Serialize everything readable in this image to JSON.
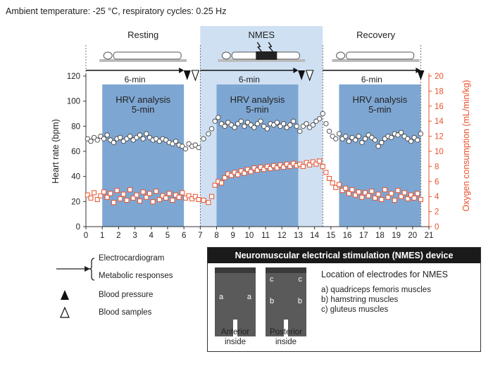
{
  "header": "Ambient temperature: -25 °C, respiratory cycles: 0.25 Hz",
  "colors": {
    "hr": "#444444",
    "vo2": "#e8502a",
    "hrv_band": "#7ea6d2",
    "nmes_band": "#cfe0f3",
    "axis_right": "#e8502a"
  },
  "chart_data": {
    "type": "scatter",
    "phases": [
      {
        "label": "Resting",
        "start": 0,
        "end": 7
      },
      {
        "label": "NMES",
        "start": 7,
        "end": 14.5
      },
      {
        "label": "Recovery",
        "start": 14.5,
        "end": 21
      }
    ],
    "hrv_windows": [
      {
        "label_line1": "HRV analysis",
        "label_line2": "5-min",
        "start": 1,
        "end": 6
      },
      {
        "label_line1": "HRV analysis",
        "label_line2": "5-min",
        "start": 8,
        "end": 13
      },
      {
        "label_line1": "HRV analysis",
        "label_line2": "5-min",
        "start": 15.5,
        "end": 20.5
      }
    ],
    "arrows": [
      {
        "label": "6-min",
        "start": 0,
        "end": 6
      },
      {
        "label": "6-min",
        "start": 7,
        "end": 13
      },
      {
        "label": "6-min",
        "start": 14.5,
        "end": 20.5
      }
    ],
    "blood_pressure_times": [
      6.2,
      13.2,
      20.5
    ],
    "blood_sample_times": [
      6.7,
      13.7
    ],
    "x_ticks": [
      0,
      1,
      2,
      3,
      4,
      5,
      6,
      7,
      8,
      9,
      10,
      11,
      12,
      13,
      14,
      15,
      16,
      17,
      18,
      19,
      20,
      21
    ],
    "xlim": [
      0,
      21
    ],
    "ylabel_left": "Heart rate (bpm)",
    "ylim_left": [
      0,
      120
    ],
    "yticks_left": [
      0,
      20,
      40,
      60,
      80,
      100,
      120
    ],
    "ylabel_right": "Oxygen consumption (mL/min/kg)",
    "ylim_right": [
      0,
      20
    ],
    "yticks_right": [
      0,
      2,
      4,
      6,
      8,
      10,
      12,
      14,
      16,
      18,
      20
    ],
    "series": [
      {
        "marker": "circle",
        "axis": "left",
        "points": [
          [
            0.1,
            70
          ],
          [
            0.3,
            68
          ],
          [
            0.5,
            71
          ],
          [
            0.7,
            69
          ],
          [
            0.9,
            72
          ],
          [
            1.1,
            70
          ],
          [
            1.3,
            73
          ],
          [
            1.5,
            69
          ],
          [
            1.7,
            67
          ],
          [
            1.9,
            70
          ],
          [
            2.1,
            71
          ],
          [
            2.3,
            68
          ],
          [
            2.5,
            70
          ],
          [
            2.7,
            72
          ],
          [
            2.9,
            69
          ],
          [
            3.1,
            71
          ],
          [
            3.3,
            73
          ],
          [
            3.5,
            70
          ],
          [
            3.7,
            74
          ],
          [
            3.9,
            71
          ],
          [
            4.1,
            69
          ],
          [
            4.3,
            70
          ],
          [
            4.5,
            68
          ],
          [
            4.7,
            70
          ],
          [
            4.9,
            69
          ],
          [
            5.1,
            67
          ],
          [
            5.3,
            66
          ],
          [
            5.5,
            68
          ],
          [
            5.7,
            65
          ],
          [
            5.9,
            64
          ],
          [
            6.1,
            62
          ],
          [
            6.3,
            66
          ],
          [
            6.5,
            64
          ],
          [
            6.7,
            65
          ],
          [
            6.9,
            63
          ],
          [
            7.2,
            70
          ],
          [
            7.5,
            74
          ],
          [
            7.7,
            78
          ],
          [
            7.9,
            84
          ],
          [
            8.1,
            87
          ],
          [
            8.3,
            82
          ],
          [
            8.5,
            80
          ],
          [
            8.7,
            83
          ],
          [
            8.9,
            81
          ],
          [
            9.1,
            79
          ],
          [
            9.3,
            82
          ],
          [
            9.5,
            84
          ],
          [
            9.7,
            80
          ],
          [
            9.9,
            83
          ],
          [
            10.1,
            81
          ],
          [
            10.3,
            79
          ],
          [
            10.5,
            82
          ],
          [
            10.7,
            84
          ],
          [
            10.9,
            80
          ],
          [
            11.1,
            78
          ],
          [
            11.3,
            82
          ],
          [
            11.5,
            81
          ],
          [
            11.7,
            83
          ],
          [
            11.9,
            80
          ],
          [
            12.1,
            82
          ],
          [
            12.3,
            79
          ],
          [
            12.5,
            81
          ],
          [
            12.7,
            84
          ],
          [
            12.9,
            80
          ],
          [
            13.1,
            76
          ],
          [
            13.3,
            80
          ],
          [
            13.5,
            82
          ],
          [
            13.7,
            79
          ],
          [
            13.9,
            81
          ],
          [
            14.1,
            84
          ],
          [
            14.3,
            86
          ],
          [
            14.5,
            90
          ],
          [
            14.7,
            82
          ],
          [
            14.9,
            76
          ],
          [
            15.1,
            72
          ],
          [
            15.3,
            70
          ],
          [
            15.5,
            74
          ],
          [
            15.7,
            70
          ],
          [
            15.9,
            72
          ],
          [
            16.1,
            68
          ],
          [
            16.3,
            71
          ],
          [
            16.5,
            69
          ],
          [
            16.7,
            72
          ],
          [
            16.9,
            67
          ],
          [
            17.1,
            70
          ],
          [
            17.3,
            73
          ],
          [
            17.5,
            71
          ],
          [
            17.7,
            69
          ],
          [
            17.9,
            64
          ],
          [
            18.1,
            67
          ],
          [
            18.3,
            70
          ],
          [
            18.5,
            72
          ],
          [
            18.7,
            71
          ],
          [
            18.9,
            74
          ],
          [
            19.1,
            73
          ],
          [
            19.3,
            75
          ],
          [
            19.5,
            72
          ],
          [
            19.7,
            70
          ],
          [
            19.9,
            68
          ],
          [
            20.1,
            71
          ],
          [
            20.3,
            69
          ],
          [
            20.5,
            74
          ]
        ]
      },
      {
        "marker": "square",
        "axis": "right",
        "points": [
          [
            0.1,
            4.2
          ],
          [
            0.3,
            3.8
          ],
          [
            0.5,
            4.5
          ],
          [
            0.7,
            3.6
          ],
          [
            0.9,
            4.1
          ],
          [
            1.1,
            4.6
          ],
          [
            1.3,
            3.9
          ],
          [
            1.5,
            4.4
          ],
          [
            1.7,
            3.2
          ],
          [
            1.9,
            4.8
          ],
          [
            2.1,
            3.7
          ],
          [
            2.3,
            4.3
          ],
          [
            2.5,
            3.5
          ],
          [
            2.7,
            4.9
          ],
          [
            2.9,
            3.8
          ],
          [
            3.1,
            4.2
          ],
          [
            3.3,
            3.4
          ],
          [
            3.5,
            4.6
          ],
          [
            3.7,
            3.9
          ],
          [
            3.9,
            4.4
          ],
          [
            4.1,
            3.3
          ],
          [
            4.3,
            4.7
          ],
          [
            4.5,
            3.6
          ],
          [
            4.7,
            4.1
          ],
          [
            4.9,
            3.8
          ],
          [
            5.1,
            4.4
          ],
          [
            5.3,
            3.5
          ],
          [
            5.5,
            4.2
          ],
          [
            5.7,
            3.9
          ],
          [
            5.9,
            4.5
          ],
          [
            6.1,
            3.8
          ],
          [
            6.3,
            4.1
          ],
          [
            6.5,
            3.7
          ],
          [
            6.7,
            4.0
          ],
          [
            6.9,
            3.6
          ],
          [
            7.2,
            3.5
          ],
          [
            7.5,
            3.2
          ],
          [
            7.7,
            4.0
          ],
          [
            7.9,
            5.5
          ],
          [
            8.1,
            6.0
          ],
          [
            8.3,
            5.8
          ],
          [
            8.5,
            6.5
          ],
          [
            8.7,
            7.0
          ],
          [
            8.9,
            6.8
          ],
          [
            9.1,
            7.2
          ],
          [
            9.3,
            6.9
          ],
          [
            9.5,
            7.4
          ],
          [
            9.7,
            7.1
          ],
          [
            9.9,
            7.6
          ],
          [
            10.1,
            7.3
          ],
          [
            10.3,
            7.8
          ],
          [
            10.5,
            7.5
          ],
          [
            10.7,
            7.9
          ],
          [
            10.9,
            7.6
          ],
          [
            11.1,
            8.0
          ],
          [
            11.3,
            7.7
          ],
          [
            11.5,
            8.1
          ],
          [
            11.7,
            7.8
          ],
          [
            11.9,
            8.2
          ],
          [
            12.1,
            7.9
          ],
          [
            12.3,
            8.3
          ],
          [
            12.5,
            8.0
          ],
          [
            12.7,
            8.4
          ],
          [
            12.9,
            8.1
          ],
          [
            13.1,
            8.3
          ],
          [
            13.3,
            8.0
          ],
          [
            13.5,
            8.5
          ],
          [
            13.7,
            8.2
          ],
          [
            13.9,
            8.6
          ],
          [
            14.1,
            8.3
          ],
          [
            14.3,
            8.7
          ],
          [
            14.5,
            8.0
          ],
          [
            14.7,
            7.2
          ],
          [
            14.9,
            6.4
          ],
          [
            15.1,
            5.8
          ],
          [
            15.3,
            5.2
          ],
          [
            15.5,
            5.6
          ],
          [
            15.7,
            4.8
          ],
          [
            15.9,
            5.1
          ],
          [
            16.1,
            4.4
          ],
          [
            16.3,
            4.9
          ],
          [
            16.5,
            4.2
          ],
          [
            16.7,
            4.6
          ],
          [
            16.9,
            3.9
          ],
          [
            17.1,
            4.5
          ],
          [
            17.3,
            4.1
          ],
          [
            17.5,
            4.7
          ],
          [
            17.7,
            3.8
          ],
          [
            17.9,
            4.3
          ],
          [
            18.1,
            3.6
          ],
          [
            18.3,
            4.9
          ],
          [
            18.5,
            3.9
          ],
          [
            18.7,
            4.4
          ],
          [
            18.9,
            3.5
          ],
          [
            19.1,
            4.8
          ],
          [
            19.3,
            4.0
          ],
          [
            19.5,
            4.5
          ],
          [
            19.7,
            3.7
          ],
          [
            19.9,
            4.2
          ],
          [
            20.1,
            3.8
          ],
          [
            20.3,
            4.4
          ],
          [
            20.5,
            3.6
          ]
        ]
      }
    ]
  },
  "legend": {
    "ecg": "Electrocardiogram",
    "metabolic": "Metabolic responses",
    "blood_pressure": "Blood pressure",
    "blood_samples": "Blood samples"
  },
  "device": {
    "title": "Neuromuscular electrical stimulation (NMES) device",
    "location_title": "Location of electrodes for NMES",
    "items": [
      "a) quadriceps femoris muscles",
      "b) hamstring muscles",
      "c) gluteus muscles"
    ],
    "anterior_caption_1": "Anterior",
    "anterior_caption_2": "inside",
    "posterior_caption_1": "Posterior",
    "posterior_caption_2": "inside",
    "anterior_labels": [
      "a",
      "a"
    ],
    "posterior_labels": [
      "c",
      "c",
      "b",
      "b"
    ]
  }
}
